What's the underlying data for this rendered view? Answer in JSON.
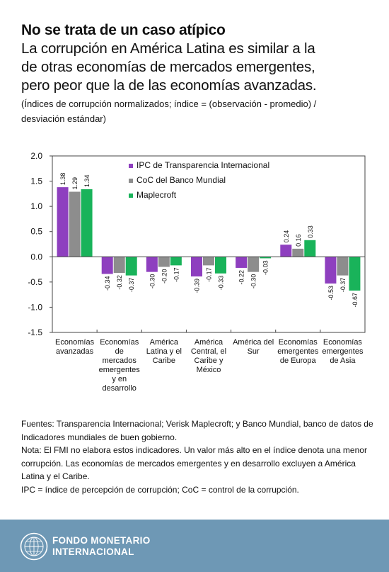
{
  "heading": {
    "title": "No se trata de un caso atípico",
    "subtitle_lines": [
      "La corrupción en América Latina es similar a la",
      "de otras economías de mercados emergentes,",
      "pero peor que la de las economías avanzadas."
    ],
    "note_lines": [
      "(Índices de corrupción normalizados; índice = (observación - promedio) /",
      "desviación estándar)"
    ]
  },
  "chart_data": {
    "type": "bar",
    "ylim": [
      -1.5,
      2.0
    ],
    "yticks": [
      "2.0",
      "1.5",
      "1.0",
      "0.5",
      "0.0",
      "-0.5",
      "-1.0",
      "-1.5"
    ],
    "grid": false,
    "legend_position": "top-left",
    "categories": [
      [
        "Economías",
        "avanzadas"
      ],
      [
        "Economías",
        "de",
        "mercados",
        "emergentes",
        "y en",
        "desarrollo"
      ],
      [
        "América",
        "Latina y el",
        "Caribe"
      ],
      [
        "América",
        "Central, el",
        "Caribe y",
        "México"
      ],
      [
        "América del",
        "Sur"
      ],
      [
        "Economías",
        "emergentes",
        "de Europa"
      ],
      [
        "Economías",
        "emergentes",
        "de Asia"
      ]
    ],
    "series": [
      {
        "name": "IPC de Transparencia Internacional",
        "color": "#8e3fbf",
        "values": [
          1.38,
          -0.34,
          -0.3,
          -0.39,
          -0.22,
          0.24,
          -0.53
        ],
        "labels": [
          "1.38",
          "-0.34",
          "-0.30",
          "-0.39",
          "-0.22",
          "0.24",
          "-0.53"
        ]
      },
      {
        "name": "CoC del Banco Mundial",
        "color": "#8d8d8d",
        "values": [
          1.29,
          -0.32,
          -0.2,
          -0.17,
          -0.3,
          0.16,
          -0.37
        ],
        "labels": [
          "1.29",
          "-0.32",
          "-0.20",
          "-0.17",
          "-0.30",
          "0.16",
          "-0.37"
        ]
      },
      {
        "name": "Maplecroft",
        "color": "#19b35a",
        "values": [
          1.34,
          -0.37,
          -0.17,
          -0.33,
          -0.03,
          0.33,
          -0.67
        ],
        "labels": [
          "1.34",
          "-0.37",
          "-0.17",
          "-0.33",
          "-0.03",
          "0.33",
          "-0.67"
        ]
      }
    ]
  },
  "notes": {
    "sources": "Fuentes: Transparencia Internacional; Verisk Maplecroft; y Banco Mundial, banco de datos de Indicadores mundiales de buen gobierno.",
    "note": "Nota: El FMI no elabora estos indicadores. Un valor más alto en el índice denota una menor corrupción. Las economías de mercados emergentes y en desarrollo excluyen a América Latina y el Caribe.",
    "abbrev": "IPC = índice de percepción de corrupción; CoC = control de la corrupción."
  },
  "footer": {
    "org_line1": "FONDO MONETARIO",
    "org_line2": "INTERNACIONAL",
    "logo_icon": "imf-seal-icon"
  }
}
